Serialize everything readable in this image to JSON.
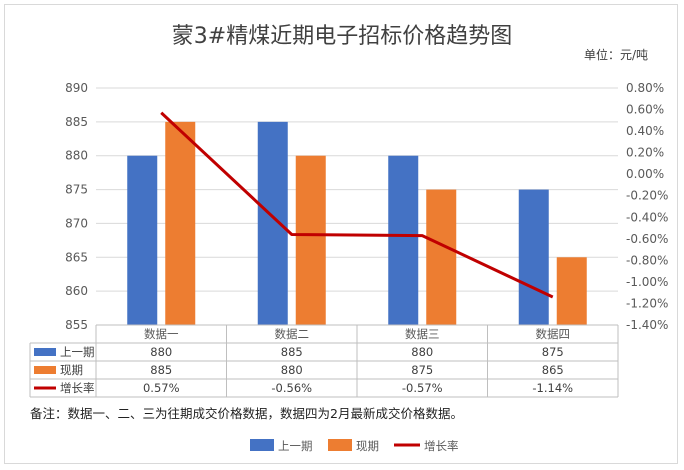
{
  "title": "蒙3#精煤近期电子招标价格趋势图",
  "unit_label": "单位：元/吨",
  "note": "备注：数据一、二、三为往期成交价格数据，数据四为2月最新成交价格数据。",
  "colors": {
    "prev": "#4472C4",
    "curr": "#ED7D31",
    "growth": "#C00000"
  },
  "chart_data": {
    "type": "bar",
    "categories": [
      "数据一",
      "数据二",
      "数据三",
      "数据四"
    ],
    "series": [
      {
        "name": "上一期",
        "values": [
          880,
          885,
          880,
          875
        ]
      },
      {
        "name": "现期",
        "values": [
          885,
          880,
          875,
          865
        ]
      },
      {
        "name": "增长率",
        "type": "line",
        "axis": "right",
        "values": [
          0.57,
          -0.56,
          -0.57,
          -1.14
        ]
      }
    ],
    "table_values": [
      [
        "880",
        "885",
        "880",
        "875"
      ],
      [
        "885",
        "880",
        "875",
        "865"
      ],
      [
        "0.57%",
        "-0.56%",
        "-0.57%",
        "-1.14%"
      ]
    ],
    "ylim": [
      855,
      890
    ],
    "yticks": [
      855,
      860,
      865,
      870,
      875,
      880,
      885,
      890
    ],
    "y2lim": [
      -1.4,
      0.8
    ],
    "y2ticks": [
      "0.80%",
      "0.60%",
      "0.40%",
      "0.20%",
      "0.00%",
      "-0.20%",
      "-0.40%",
      "-0.60%",
      "-0.80%",
      "-1.00%",
      "-1.20%",
      "-1.40%"
    ],
    "grid": true,
    "legend_position": "bottom"
  }
}
